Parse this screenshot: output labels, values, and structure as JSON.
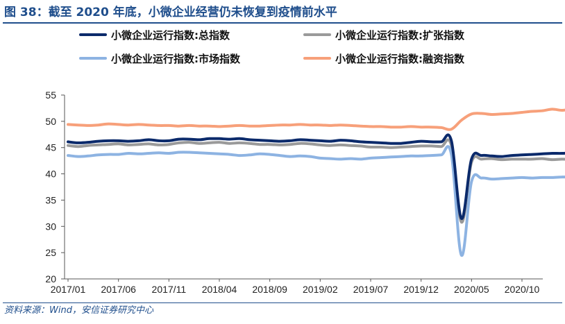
{
  "figure": {
    "title": "图 38：截至 2020 年底，小微企业经营仍未恢复到疫情前水平",
    "source": "资料来源：Wind，安信证券研究中心"
  },
  "chart_data": {
    "type": "line",
    "ylim": [
      20,
      55
    ],
    "yticks": [
      20,
      25,
      30,
      35,
      40,
      45,
      50,
      55
    ],
    "xtick_labels": [
      "2017/01",
      "2017/06",
      "2017/11",
      "2018/04",
      "2018/09",
      "2019/02",
      "2019/07",
      "2019/12",
      "2020/05",
      "2020/10"
    ],
    "x_start": "2017/01",
    "x_end": "2020/12",
    "grid": false,
    "legend_position": "top",
    "series": [
      {
        "name": "小微企业运行指数:总指数",
        "color": "#0b2a6b",
        "values": [
          46.1,
          45.9,
          46.0,
          46.2,
          46.3,
          46.3,
          46.2,
          46.3,
          46.5,
          46.3,
          46.3,
          46.6,
          46.6,
          46.5,
          46.7,
          46.7,
          46.6,
          46.7,
          46.5,
          46.4,
          46.3,
          46.2,
          46.3,
          46.5,
          46.4,
          46.3,
          46.2,
          46.4,
          46.3,
          46.1,
          46.0,
          45.9,
          45.8,
          45.8,
          46.0,
          46.2,
          46.1,
          46.1,
          46.3,
          31.5,
          42.8,
          43.5,
          43.4,
          43.3,
          43.5,
          43.6,
          43.7,
          43.8,
          43.9,
          43.9,
          44.0,
          44.0
        ]
      },
      {
        "name": "小微企业运行指数:扩张指数",
        "color": "#9a9a9a",
        "values": [
          45.4,
          45.2,
          45.4,
          45.5,
          45.6,
          45.7,
          45.5,
          45.6,
          45.7,
          45.5,
          45.6,
          45.9,
          46.0,
          45.8,
          45.9,
          46.0,
          45.8,
          45.9,
          45.8,
          45.6,
          45.6,
          45.5,
          45.6,
          45.8,
          45.7,
          45.5,
          45.4,
          45.5,
          45.4,
          45.3,
          45.1,
          45.1,
          45.0,
          45.1,
          45.2,
          45.3,
          45.3,
          45.2,
          45.4,
          30.8,
          42.2,
          42.8,
          42.9,
          42.7,
          42.8,
          42.8,
          42.8,
          42.9,
          42.7,
          42.8,
          42.7,
          42.8
        ]
      },
      {
        "name": "小微企业运行指数:市场指数",
        "color": "#8db3e2",
        "values": [
          43.5,
          43.3,
          43.4,
          43.6,
          43.7,
          43.7,
          43.9,
          43.8,
          43.9,
          44.0,
          43.9,
          44.1,
          44.1,
          44.0,
          43.9,
          43.8,
          43.7,
          43.5,
          43.6,
          43.8,
          43.7,
          43.5,
          43.3,
          43.4,
          43.3,
          43.0,
          42.9,
          42.8,
          42.9,
          42.8,
          43.0,
          43.1,
          43.2,
          43.3,
          43.4,
          43.4,
          43.5,
          43.6,
          43.7,
          24.5,
          38.5,
          39.2,
          39.0,
          39.1,
          39.2,
          39.3,
          39.2,
          39.3,
          39.3,
          39.4,
          39.4,
          39.5
        ]
      },
      {
        "name": "小微企业运行指数:融资指数",
        "color": "#f7a07a",
        "values": [
          49.4,
          49.3,
          49.2,
          49.3,
          49.5,
          49.4,
          49.3,
          49.4,
          49.3,
          49.2,
          49.2,
          49.1,
          49.2,
          49.1,
          49.1,
          49.0,
          49.1,
          49.2,
          49.1,
          49.1,
          49.2,
          49.3,
          49.3,
          49.4,
          49.3,
          49.3,
          49.2,
          49.3,
          49.2,
          49.1,
          49.0,
          49.0,
          48.9,
          48.9,
          49.0,
          48.9,
          48.9,
          48.8,
          48.5,
          50.2,
          51.4,
          51.5,
          51.3,
          51.4,
          51.5,
          51.7,
          51.9,
          52.0,
          52.3,
          52.1,
          52.4,
          52.8
        ]
      }
    ]
  }
}
